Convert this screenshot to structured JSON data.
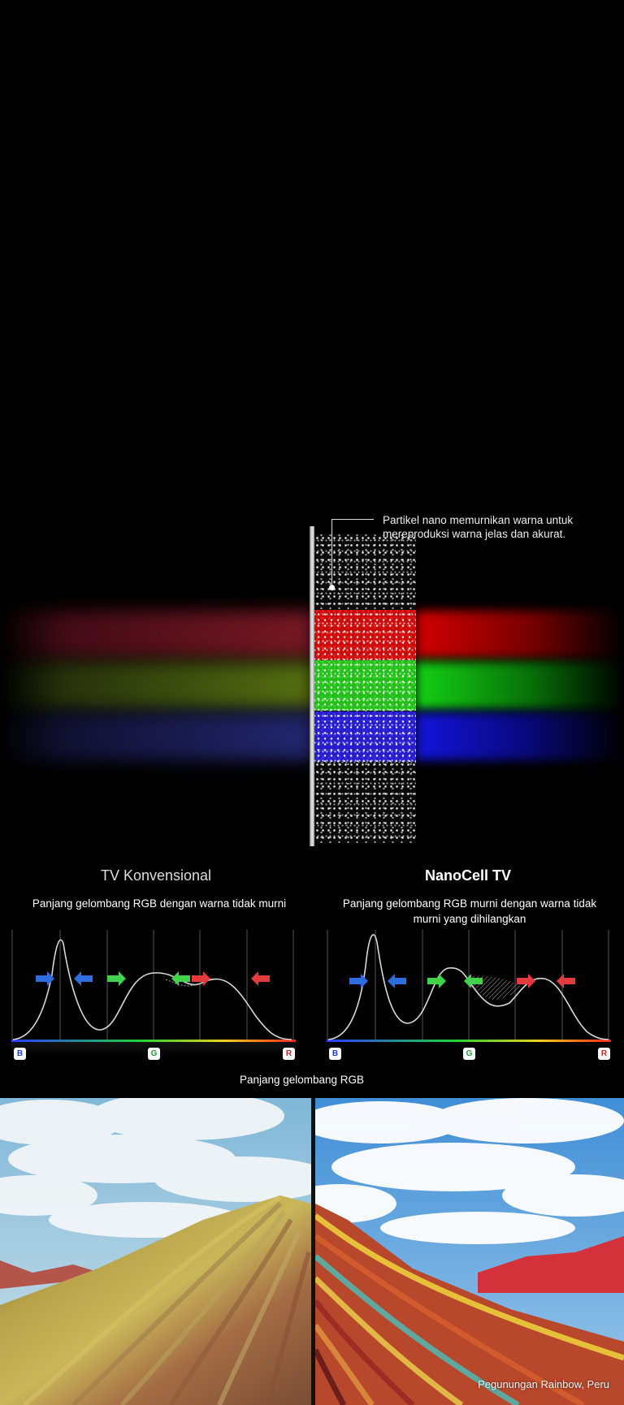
{
  "callout": {
    "line1": "Partikel nano memurnikan warna untuk",
    "line2": "mereproduksi warna jelas dan akurat."
  },
  "left": {
    "title": "TV Konvensional",
    "subtitle": "Panjang gelombang RGB dengan warna tidak murni"
  },
  "right": {
    "title": "NanoCell TV",
    "subtitle": "Panjang gelombang RGB murni dengan warna tidak murni yang dihilangkan"
  },
  "axis": {
    "badge_b": "B",
    "badge_g": "G",
    "badge_r": "R",
    "caption": "Panjang gelombang RGB"
  },
  "photo_caption": "Pegunungan Rainbow, Peru",
  "colors": {
    "red": "#e33b3b",
    "green": "#3fd24a",
    "blue": "#2e6de0",
    "background": "#000000"
  },
  "icons": [
    "arrow-right-icon",
    "arrow-left-icon"
  ]
}
